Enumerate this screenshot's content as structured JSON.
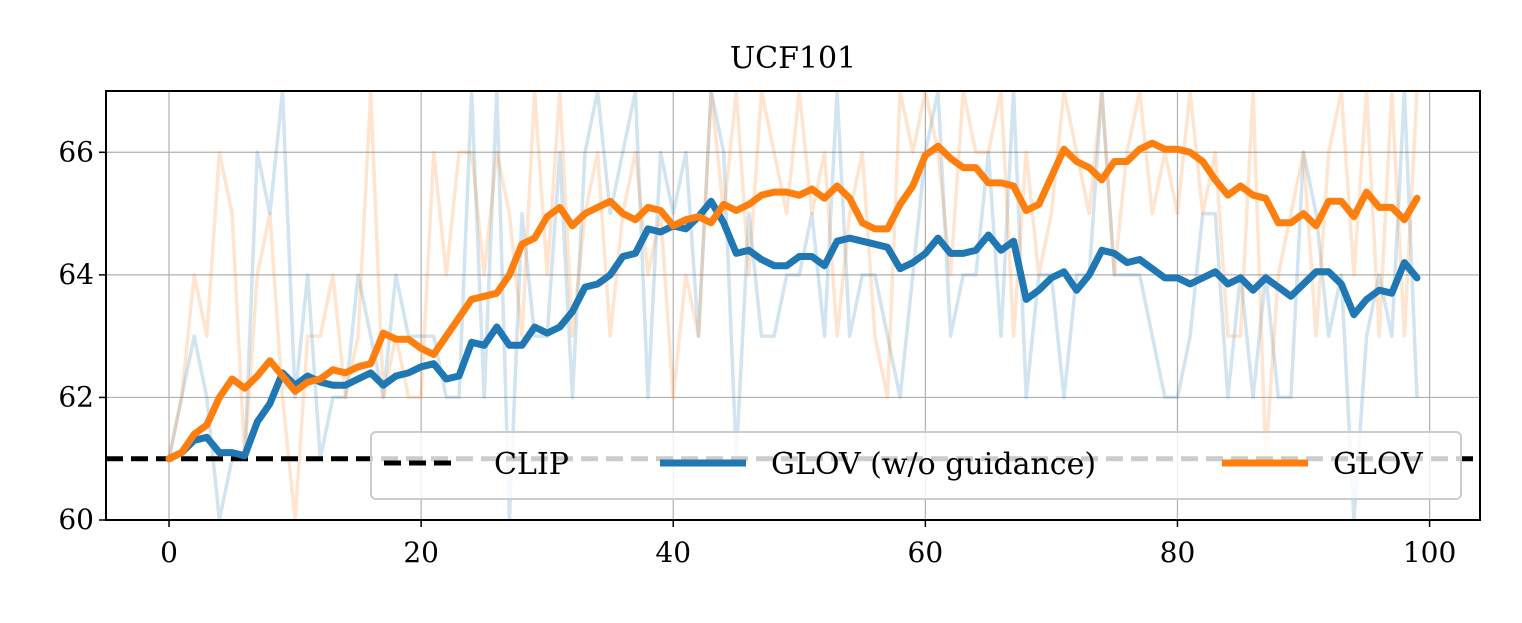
{
  "chart_data": {
    "type": "line",
    "title": "UCF101",
    "xlabel": "",
    "ylabel": "",
    "xlim": [
      -5,
      104
    ],
    "ylim": [
      60,
      67
    ],
    "xticks": [
      0,
      20,
      40,
      60,
      80,
      100
    ],
    "yticks": [
      60,
      62,
      64,
      66
    ],
    "grid": true,
    "legend_position": "lower-right",
    "baseline": {
      "name": "CLIP",
      "value": 61,
      "color": "#000000",
      "style": "dashed"
    },
    "series": [
      {
        "name": "GLOV (w/o guidance)",
        "color": "#1f77b4",
        "x": [
          0,
          1,
          2,
          3,
          4,
          5,
          6,
          7,
          8,
          9,
          10,
          11,
          12,
          13,
          14,
          15,
          16,
          17,
          18,
          19,
          20,
          21,
          22,
          23,
          24,
          25,
          26,
          27,
          28,
          29,
          30,
          31,
          32,
          33,
          34,
          35,
          36,
          37,
          38,
          39,
          40,
          41,
          42,
          43,
          44,
          45,
          46,
          47,
          48,
          49,
          50,
          51,
          52,
          53,
          54,
          55,
          56,
          57,
          58,
          59,
          60,
          61,
          62,
          63,
          64,
          65,
          66,
          67,
          68,
          69,
          70,
          71,
          72,
          73,
          74,
          75,
          76,
          77,
          78,
          79,
          80,
          81,
          82,
          83,
          84,
          85,
          86,
          87,
          88,
          89,
          90,
          91,
          92,
          93,
          94,
          95,
          96,
          97,
          98,
          99
        ],
        "raw": [
          61,
          62,
          63,
          62,
          60,
          61,
          61,
          66,
          65,
          67,
          62,
          64,
          61,
          62,
          62,
          64,
          63,
          62,
          64,
          63,
          63,
          63,
          62,
          62,
          67,
          62,
          67,
          60,
          65,
          63,
          63,
          66,
          62,
          66,
          67,
          65,
          66,
          67,
          62,
          66,
          65,
          66,
          63,
          67,
          66,
          61,
          65,
          63,
          63,
          64,
          64,
          65,
          63,
          67,
          63,
          64,
          64,
          63,
          62,
          64,
          66,
          67,
          63,
          64,
          64,
          66,
          63,
          67,
          62,
          64,
          64,
          62,
          64,
          64,
          67,
          64,
          64,
          64,
          63,
          62,
          62,
          63,
          65,
          65,
          62,
          64,
          62,
          64,
          62,
          62,
          66,
          65,
          63,
          64,
          60,
          63,
          64,
          63,
          67,
          62
        ],
        "smooth": [
          61.0,
          61.1,
          61.3,
          61.35,
          61.1,
          61.1,
          61.05,
          61.6,
          61.9,
          62.4,
          62.2,
          62.35,
          62.25,
          62.2,
          62.2,
          62.3,
          62.4,
          62.2,
          62.35,
          62.4,
          62.5,
          62.55,
          62.3,
          62.35,
          62.9,
          62.85,
          63.15,
          62.85,
          62.85,
          63.15,
          63.05,
          63.15,
          63.4,
          63.8,
          63.85,
          64.0,
          64.3,
          64.35,
          64.75,
          64.7,
          64.8,
          64.75,
          64.95,
          65.2,
          64.85,
          64.35,
          64.4,
          64.25,
          64.15,
          64.15,
          64.3,
          64.3,
          64.15,
          64.55,
          64.6,
          64.55,
          64.5,
          64.45,
          64.1,
          64.2,
          64.35,
          64.6,
          64.35,
          64.35,
          64.4,
          64.65,
          64.4,
          64.55,
          63.6,
          63.75,
          63.95,
          64.05,
          63.75,
          64.0,
          64.4,
          64.35,
          64.2,
          64.25,
          64.1,
          63.95,
          63.95,
          63.85,
          63.95,
          64.05,
          63.85,
          63.95,
          63.75,
          63.95,
          63.8,
          63.65,
          63.85,
          64.05,
          64.05,
          63.85,
          63.35,
          63.6,
          63.75,
          63.7,
          64.2,
          63.95
        ]
      },
      {
        "name": "GLOV",
        "color": "#ff7f0e",
        "x": [
          0,
          1,
          2,
          3,
          4,
          5,
          6,
          7,
          8,
          9,
          10,
          11,
          12,
          13,
          14,
          15,
          16,
          17,
          18,
          19,
          20,
          21,
          22,
          23,
          24,
          25,
          26,
          27,
          28,
          29,
          30,
          31,
          32,
          33,
          34,
          35,
          36,
          37,
          38,
          39,
          40,
          41,
          42,
          43,
          44,
          45,
          46,
          47,
          48,
          49,
          50,
          51,
          52,
          53,
          54,
          55,
          56,
          57,
          58,
          59,
          60,
          61,
          62,
          63,
          64,
          65,
          66,
          67,
          68,
          69,
          70,
          71,
          72,
          73,
          74,
          75,
          76,
          77,
          78,
          79,
          80,
          81,
          82,
          83,
          84,
          85,
          86,
          87,
          88,
          89,
          90,
          91,
          92,
          93,
          94,
          95,
          96,
          97,
          98,
          99
        ],
        "raw": [
          61,
          62,
          64,
          63,
          66,
          65,
          61,
          64,
          65,
          62,
          60,
          63,
          63,
          64,
          62,
          63,
          67,
          62,
          63,
          62,
          62,
          66,
          64,
          66,
          66,
          64,
          66,
          65,
          63,
          67,
          64,
          67,
          63,
          65,
          66,
          63,
          65,
          66,
          64,
          65,
          62,
          64,
          63,
          67,
          65,
          67,
          64,
          67,
          66,
          65,
          67,
          65,
          66,
          63,
          65,
          66,
          63,
          62,
          67,
          66,
          67,
          66,
          64,
          67,
          66,
          66,
          67,
          63,
          66,
          64,
          65,
          67,
          66,
          65,
          67,
          64,
          66,
          67,
          65,
          66,
          65,
          67,
          65,
          66,
          63,
          63,
          67,
          61,
          64,
          65,
          66,
          63,
          66,
          67,
          64,
          67,
          63,
          67,
          63,
          67
        ],
        "smooth": [
          61.0,
          61.1,
          61.4,
          61.55,
          62.0,
          62.3,
          62.15,
          62.35,
          62.6,
          62.35,
          62.1,
          62.25,
          62.3,
          62.45,
          62.4,
          62.5,
          62.55,
          63.05,
          62.95,
          62.95,
          62.8,
          62.7,
          63.0,
          63.3,
          63.6,
          63.65,
          63.7,
          64.0,
          64.5,
          64.6,
          64.95,
          65.1,
          64.8,
          65.0,
          65.1,
          65.2,
          65.0,
          64.9,
          65.1,
          65.05,
          64.8,
          64.9,
          64.95,
          64.85,
          65.15,
          65.05,
          65.15,
          65.3,
          65.35,
          65.35,
          65.3,
          65.4,
          65.25,
          65.45,
          65.25,
          64.85,
          64.75,
          64.75,
          65.15,
          65.45,
          65.95,
          66.1,
          65.9,
          65.75,
          65.75,
          65.5,
          65.5,
          65.45,
          65.05,
          65.15,
          65.6,
          66.05,
          65.85,
          65.75,
          65.55,
          65.85,
          65.85,
          66.05,
          66.15,
          66.05,
          66.05,
          66.0,
          65.85,
          65.55,
          65.3,
          65.45,
          65.3,
          65.25,
          64.85,
          64.85,
          65.0,
          64.8,
          65.2,
          65.2,
          64.95,
          65.35,
          65.1,
          65.1,
          64.9,
          65.25
        ]
      }
    ]
  }
}
